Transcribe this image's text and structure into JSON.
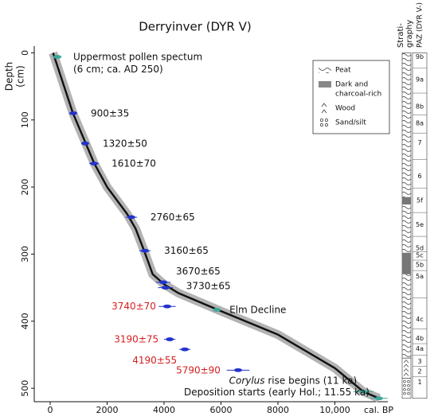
{
  "chart_data": {
    "type": "scatter",
    "title": "Derryinver (DYR V)",
    "y_label": "Depth",
    "y_unit": "(cm)",
    "x_label": "cal. BP",
    "xlim": [
      -560,
      11860
    ],
    "ylim": [
      -10,
      520
    ],
    "xticks": [
      0,
      2000,
      4000,
      6000,
      8000,
      {
        "value": 10000,
        "label": "10,000"
      }
    ],
    "yticks": [
      0,
      100,
      200,
      300,
      400,
      500
    ],
    "y_inverted": true,
    "model": {
      "color": "#111111",
      "band_color": "#b3b3b3",
      "x": [
        100,
        800,
        1250,
        1550,
        2000,
        2700,
        3000,
        3300,
        3600,
        4000,
        4500,
        6000,
        8000,
        10000,
        11000,
        11550
      ],
      "y": [
        0,
        90,
        135,
        165,
        200,
        240,
        262,
        295,
        330,
        345,
        358,
        385,
        420,
        470,
        505,
        515
      ]
    },
    "dates": [
      {
        "label": "Uppermost pollen spectum",
        "label2": "(6 cm; ca. AD 250)",
        "x": 250,
        "xerr": 150,
        "depth": 6,
        "color": "#111111",
        "marker": "#3aa89a"
      },
      {
        "label": "900±35",
        "x": 810,
        "xerr": 90,
        "depth": 90,
        "color": "#111111",
        "marker": "#2233cc"
      },
      {
        "label": "1320±50",
        "x": 1230,
        "xerr": 130,
        "depth": 135,
        "color": "#111111",
        "marker": "#2233cc"
      },
      {
        "label": "1610±70",
        "x": 1540,
        "xerr": 170,
        "depth": 165,
        "color": "#111111",
        "marker": "#2233cc"
      },
      {
        "label": "2760±65",
        "x": 2850,
        "xerr": 200,
        "depth": 245,
        "color": "#111111",
        "marker": "#2233cc"
      },
      {
        "label": "3160±65",
        "x": 3330,
        "xerr": 200,
        "depth": 295,
        "color": "#111111",
        "marker": "#2233cc"
      },
      {
        "label": "3670±65",
        "x": 3970,
        "xerr": 260,
        "depth": 342,
        "color": "#111111",
        "marker": "#2233cc"
      },
      {
        "label": "3730±65",
        "x": 4050,
        "xerr": 260,
        "depth": 350,
        "color": "#111111",
        "marker": "#2233cc"
      },
      {
        "label": "3740±70",
        "x": 4110,
        "xerr": 300,
        "depth": 378,
        "color": "#d42020",
        "marker": "#2233cc"
      },
      {
        "label": "Elm Decline",
        "x": 5850,
        "xerr": 80,
        "depth": 383,
        "color": "#111111",
        "marker": "#3aa89a"
      },
      {
        "label": "3190±75",
        "x": 4200,
        "xerr": 200,
        "depth": 427,
        "color": "#d42020",
        "marker": "#2233cc"
      },
      {
        "label": "4190±55",
        "x": 4730,
        "xerr": 200,
        "depth": 442,
        "color": "#d42020",
        "marker": "#2233cc"
      },
      {
        "label": "5790±90",
        "x": 6600,
        "xerr": 400,
        "depth": 473,
        "color": "#d42020",
        "marker": "#2233cc"
      },
      {
        "label_italic": "Corylus",
        "label": " rise begins (11 ka)",
        "x": 11000,
        "xerr": 350,
        "depth": 505,
        "color": "#111111",
        "marker": "#3aa89a"
      },
      {
        "label": "Deposition starts (early Hol.; 11.55 ka)",
        "x": 11550,
        "xerr": 300,
        "depth": 515,
        "color": "#111111",
        "marker": "#3aa89a"
      }
    ],
    "legend": [
      "Peat",
      "Dark and",
      "charcoal-rich",
      "Wood",
      "Sand/silt"
    ],
    "strat_label": [
      "Strati-",
      "graphy"
    ],
    "paz_label": "PAZ (DYR V-)",
    "zones": [
      {
        "label": "9b",
        "depth": 6
      },
      {
        "label": "9a",
        "depth": 40
      },
      {
        "label": "8b",
        "depth": 80
      },
      {
        "label": "8a",
        "depth": 105
      },
      {
        "label": "7",
        "depth": 134
      },
      {
        "label": "6",
        "depth": 184
      },
      {
        "label": "5f",
        "depth": 220
      },
      {
        "label": "5e",
        "depth": 256
      },
      {
        "label": "5d",
        "depth": 291
      },
      {
        "label": "5c",
        "depth": 302
      },
      {
        "label": "5b",
        "depth": 316
      },
      {
        "label": "5a",
        "depth": 333
      },
      {
        "label": "4c",
        "depth": 397
      },
      {
        "label": "4b",
        "depth": 426
      },
      {
        "label": "4a",
        "depth": 441
      },
      {
        "label": "3",
        "depth": 460
      },
      {
        "label": "2",
        "depth": 475
      },
      {
        "label": "1",
        "depth": 491
      }
    ]
  }
}
